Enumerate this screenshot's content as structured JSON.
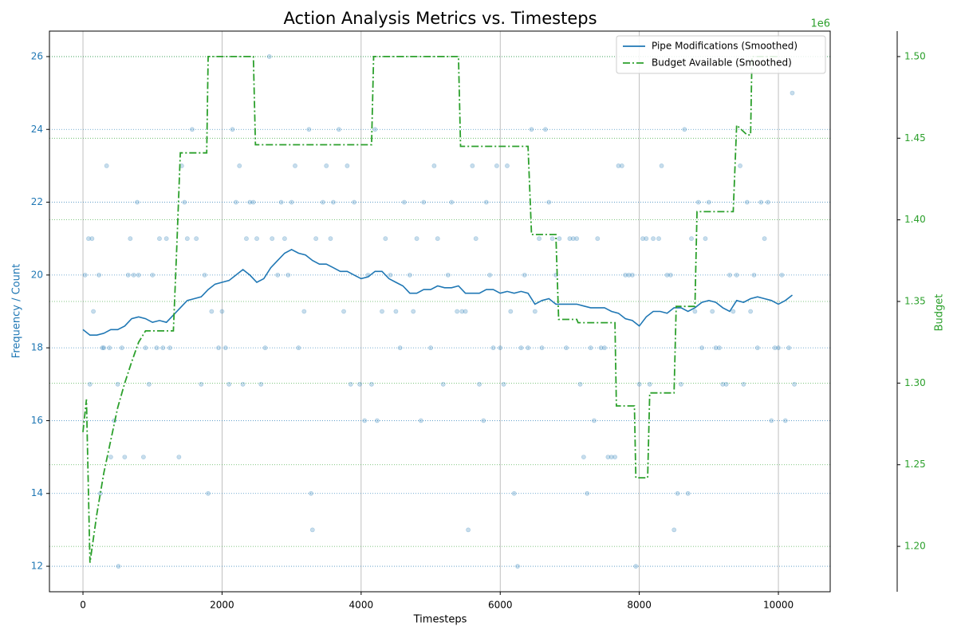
{
  "chart_data": {
    "type": "line",
    "title": "Action Analysis Metrics vs. Timesteps",
    "x_label": "Timesteps",
    "y_label": "Frequency / Count",
    "y2_label": "Budget",
    "y2_offset_label": "1e6",
    "xlim": [
      -482,
      10745
    ],
    "xticks": [
      0,
      2000,
      4000,
      6000,
      8000,
      10000
    ],
    "ylim": [
      11.3,
      26.7
    ],
    "yticks": [
      12,
      14,
      16,
      18,
      20,
      22,
      24,
      26
    ],
    "y2lim": [
      1.1722,
      1.5156
    ],
    "y2ticks": [
      {
        "value": 1.2,
        "label": "1.20"
      },
      {
        "value": 1.25,
        "label": "1.25"
      },
      {
        "value": 1.3,
        "label": "1.30"
      },
      {
        "value": 1.35,
        "label": "1.35"
      },
      {
        "value": 1.4,
        "label": "1.40"
      },
      {
        "value": 1.45,
        "label": "1.45"
      },
      {
        "value": 1.5,
        "label": "1.50"
      }
    ],
    "grid": true,
    "legend": "upper right",
    "points": {
      "color": "#1f77b4",
      "x": [
        30,
        80,
        100,
        130,
        150,
        230,
        250,
        280,
        300,
        340,
        380,
        400,
        450,
        500,
        510,
        560,
        600,
        650,
        680,
        730,
        780,
        800,
        870,
        900,
        950,
        1000,
        1060,
        1100,
        1150,
        1200,
        1250,
        1380,
        1420,
        1460,
        1500,
        1570,
        1630,
        1700,
        1750,
        1800,
        1850,
        1950,
        2000,
        2050,
        2100,
        2150,
        2200,
        2250,
        2300,
        2350,
        2400,
        2450,
        2500,
        2560,
        2620,
        2680,
        2720,
        2800,
        2850,
        2900,
        2950,
        3000,
        3050,
        3100,
        3180,
        3250,
        3280,
        3300,
        3350,
        3450,
        3500,
        3560,
        3600,
        3680,
        3750,
        3800,
        3850,
        3900,
        3980,
        4050,
        4100,
        4150,
        4200,
        4230,
        4300,
        4350,
        4420,
        4500,
        4560,
        4620,
        4700,
        4750,
        4800,
        4860,
        4900,
        5000,
        5050,
        5100,
        5180,
        5250,
        5300,
        5380,
        5450,
        5500,
        5540,
        5600,
        5650,
        5700,
        5760,
        5800,
        5850,
        5900,
        5950,
        6000,
        6050,
        6100,
        6150,
        6200,
        6250,
        6300,
        6350,
        6400,
        6450,
        6500,
        6560,
        6600,
        6650,
        6700,
        6750,
        6800,
        6850,
        6950,
        7000,
        7050,
        7100,
        7150,
        7200,
        7250,
        7300,
        7350,
        7400,
        7450,
        7500,
        7550,
        7600,
        7650,
        7700,
        7750,
        7800,
        7850,
        7900,
        7950,
        8000,
        8050,
        8100,
        8150,
        8200,
        8280,
        8320,
        8400,
        8450,
        8500,
        8550,
        8600,
        8650,
        8700,
        8750,
        8800,
        8850,
        8900,
        8950,
        9000,
        9050,
        9100,
        9150,
        9200,
        9250,
        9300,
        9350,
        9400,
        9450,
        9500,
        9550,
        9600,
        9650,
        9700,
        9750,
        9800,
        9850,
        9900,
        9950,
        10000,
        10050,
        10100,
        10150,
        10200,
        10230
      ],
      "y": [
        20,
        21,
        17,
        21,
        19,
        20,
        14,
        18,
        18,
        23,
        18,
        15,
        16,
        17,
        12,
        18,
        15,
        20,
        21,
        20,
        22,
        20,
        15,
        18,
        17,
        20,
        18,
        21,
        18,
        21,
        18,
        15,
        23,
        22,
        21,
        24,
        21,
        17,
        20,
        14,
        19,
        18,
        19,
        18,
        17,
        24,
        22,
        23,
        17,
        21,
        22,
        22,
        21,
        17,
        18,
        26,
        21,
        20,
        22,
        21,
        20,
        22,
        23,
        18,
        19,
        24,
        14,
        13,
        21,
        22,
        23,
        21,
        22,
        24,
        19,
        23,
        17,
        22,
        17,
        16,
        20,
        17,
        24,
        16,
        19,
        21,
        20,
        19,
        18,
        22,
        20,
        19,
        21,
        16,
        22,
        18,
        23,
        21,
        17,
        20,
        22,
        19,
        19,
        19,
        13,
        23,
        21,
        17,
        16,
        22,
        20,
        18,
        23,
        18,
        17,
        23,
        19,
        14,
        12,
        18,
        20,
        18,
        24,
        19,
        21,
        18,
        24,
        22,
        21,
        20,
        21,
        18,
        21,
        21,
        21,
        17,
        15,
        14,
        18,
        16,
        21,
        18,
        18,
        15,
        15,
        15,
        23,
        23,
        20,
        20,
        20,
        12,
        17,
        21,
        21,
        17,
        21,
        21,
        23,
        20,
        20,
        13,
        14,
        17,
        24,
        14,
        21,
        19,
        22,
        18,
        21,
        22,
        19,
        18,
        18,
        17,
        17,
        20,
        19,
        20,
        23,
        17,
        22,
        19,
        20,
        18,
        22,
        21,
        22,
        16,
        18,
        18,
        20,
        16,
        18,
        25,
        17
      ]
    },
    "series": [
      {
        "name": "Pipe Modifications (Smoothed)",
        "color": "#1f77b4",
        "style": "solid",
        "x": [
          0,
          100,
          200,
          300,
          400,
          500,
          600,
          700,
          800,
          900,
          1000,
          1100,
          1200,
          1300,
          1400,
          1500,
          1600,
          1700,
          1800,
          1900,
          2000,
          2100,
          2200,
          2300,
          2400,
          2500,
          2600,
          2700,
          2800,
          2900,
          3000,
          3100,
          3200,
          3300,
          3400,
          3500,
          3600,
          3700,
          3800,
          3900,
          4000,
          4100,
          4200,
          4300,
          4400,
          4500,
          4600,
          4700,
          4800,
          4900,
          5000,
          5100,
          5200,
          5300,
          5400,
          5500,
          5600,
          5700,
          5800,
          5900,
          6000,
          6100,
          6200,
          6300,
          6400,
          6500,
          6600,
          6700,
          6800,
          6900,
          7000,
          7100,
          7200,
          7300,
          7400,
          7500,
          7600,
          7700,
          7800,
          7900,
          8000,
          8100,
          8200,
          8300,
          8400,
          8500,
          8600,
          8700,
          8800,
          8900,
          9000,
          9100,
          9200,
          9300,
          9400,
          9500,
          9600,
          9700,
          9800,
          9900,
          10000,
          10100,
          10200
        ],
        "values": [
          18.5,
          18.35,
          18.35,
          18.4,
          18.5,
          18.5,
          18.6,
          18.8,
          18.85,
          18.8,
          18.7,
          18.75,
          18.7,
          18.9,
          19.1,
          19.3,
          19.35,
          19.4,
          19.6,
          19.75,
          19.8,
          19.85,
          20.0,
          20.15,
          20.0,
          19.8,
          19.9,
          20.2,
          20.4,
          20.6,
          20.7,
          20.6,
          20.55,
          20.4,
          20.3,
          20.3,
          20.2,
          20.1,
          20.1,
          20.0,
          19.9,
          19.95,
          20.1,
          20.1,
          19.9,
          19.8,
          19.7,
          19.5,
          19.5,
          19.6,
          19.6,
          19.7,
          19.65,
          19.65,
          19.7,
          19.5,
          19.5,
          19.5,
          19.6,
          19.6,
          19.5,
          19.55,
          19.5,
          19.55,
          19.5,
          19.2,
          19.3,
          19.35,
          19.2,
          19.2,
          19.2,
          19.2,
          19.15,
          19.1,
          19.1,
          19.1,
          19.0,
          18.95,
          18.8,
          18.75,
          18.6,
          18.85,
          19.0,
          19.0,
          18.95,
          19.1,
          19.1,
          19.0,
          19.1,
          19.25,
          19.3,
          19.25,
          19.1,
          19.0,
          19.3,
          19.25,
          19.35,
          19.4,
          19.35,
          19.3,
          19.2,
          19.3,
          19.45
        ]
      },
      {
        "name": "Budget Available (Smoothed)",
        "color": "#2ca02c",
        "style": "dashdot",
        "axis": "y2",
        "x": [
          0,
          50,
          100,
          200,
          300,
          400,
          500,
          600,
          700,
          800,
          900,
          1000,
          1300,
          1350,
          1400,
          1500,
          1780,
          1800,
          2450,
          2480,
          4150,
          4180,
          5400,
          5430,
          6400,
          6450,
          6800,
          6840,
          7100,
          7120,
          7650,
          7670,
          7930,
          7950,
          8120,
          8150,
          8500,
          8530,
          8800,
          8830,
          9350,
          9400,
          9550,
          9600,
          9620,
          10000
        ],
        "values": [
          1.27,
          1.29,
          1.19,
          1.22,
          1.245,
          1.265,
          1.285,
          1.3,
          1.313,
          1.325,
          1.332,
          1.332,
          1.332,
          1.385,
          1.441,
          1.441,
          1.441,
          1.5,
          1.5,
          1.446,
          1.446,
          1.5,
          1.5,
          1.445,
          1.445,
          1.391,
          1.391,
          1.339,
          1.339,
          1.337,
          1.337,
          1.286,
          1.286,
          1.242,
          1.242,
          1.294,
          1.294,
          1.347,
          1.347,
          1.405,
          1.405,
          1.458,
          1.452,
          1.452,
          1.5,
          1.5
        ]
      }
    ]
  }
}
